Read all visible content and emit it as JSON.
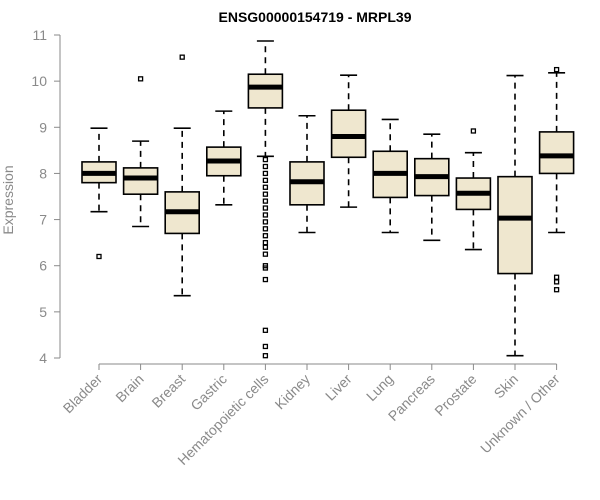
{
  "chart_data": {
    "type": "boxplot",
    "title": "ENSG00000154719 - MRPL39",
    "xlabel": "",
    "ylabel": "Expression",
    "ylim": [
      4,
      11
    ],
    "yticks": [
      4,
      5,
      6,
      7,
      8,
      9,
      10,
      11
    ],
    "grid": false,
    "categories": [
      "Bladder",
      "Brain",
      "Breast",
      "Gastric",
      "Hematopoietic cells",
      "Kidney",
      "Liver",
      "Lung",
      "Pancreas",
      "Prostate",
      "Skin",
      "Unknown / Other"
    ],
    "boxes": [
      {
        "name": "Bladder",
        "min": 7.17,
        "q1": 7.8,
        "median": 8.0,
        "q3": 8.25,
        "max": 8.98,
        "outliers": [
          6.2
        ]
      },
      {
        "name": "Brain",
        "min": 6.85,
        "q1": 7.55,
        "median": 7.9,
        "q3": 8.12,
        "max": 8.7,
        "outliers": [
          10.05
        ]
      },
      {
        "name": "Breast",
        "min": 5.35,
        "q1": 6.7,
        "median": 7.17,
        "q3": 7.6,
        "max": 8.98,
        "outliers": [
          10.52
        ]
      },
      {
        "name": "Gastric",
        "min": 7.32,
        "q1": 7.95,
        "median": 8.27,
        "q3": 8.57,
        "max": 9.35,
        "outliers": []
      },
      {
        "name": "Hematopoietic cells",
        "min": 8.37,
        "q1": 9.42,
        "median": 9.87,
        "q3": 10.15,
        "max": 10.87,
        "outliers": [
          8.3,
          8.15,
          8.0,
          7.85,
          7.7,
          7.55,
          7.4,
          7.25,
          7.1,
          6.95,
          6.8,
          6.65,
          6.5,
          6.4,
          6.25,
          6.0,
          5.95,
          5.7,
          4.6,
          4.25,
          4.05
        ]
      },
      {
        "name": "Kidney",
        "min": 6.72,
        "q1": 7.32,
        "median": 7.82,
        "q3": 8.25,
        "max": 9.25,
        "outliers": []
      },
      {
        "name": "Liver",
        "min": 7.27,
        "q1": 8.35,
        "median": 8.8,
        "q3": 9.37,
        "max": 10.13,
        "outliers": []
      },
      {
        "name": "Lung",
        "min": 6.72,
        "q1": 7.48,
        "median": 8.0,
        "q3": 8.48,
        "max": 9.17,
        "outliers": []
      },
      {
        "name": "Pancreas",
        "min": 6.55,
        "q1": 7.52,
        "median": 7.93,
        "q3": 8.32,
        "max": 8.85,
        "outliers": []
      },
      {
        "name": "Prostate",
        "min": 6.35,
        "q1": 7.22,
        "median": 7.57,
        "q3": 7.9,
        "max": 8.45,
        "outliers": [
          8.92
        ]
      },
      {
        "name": "Skin",
        "min": 4.05,
        "q1": 5.83,
        "median": 7.03,
        "q3": 7.93,
        "max": 10.12,
        "outliers": []
      },
      {
        "name": "Unknown / Other",
        "min": 6.72,
        "q1": 8.0,
        "median": 8.38,
        "q3": 8.9,
        "max": 10.18,
        "outliers": [
          10.25,
          5.75,
          5.65,
          5.48
        ]
      }
    ]
  }
}
